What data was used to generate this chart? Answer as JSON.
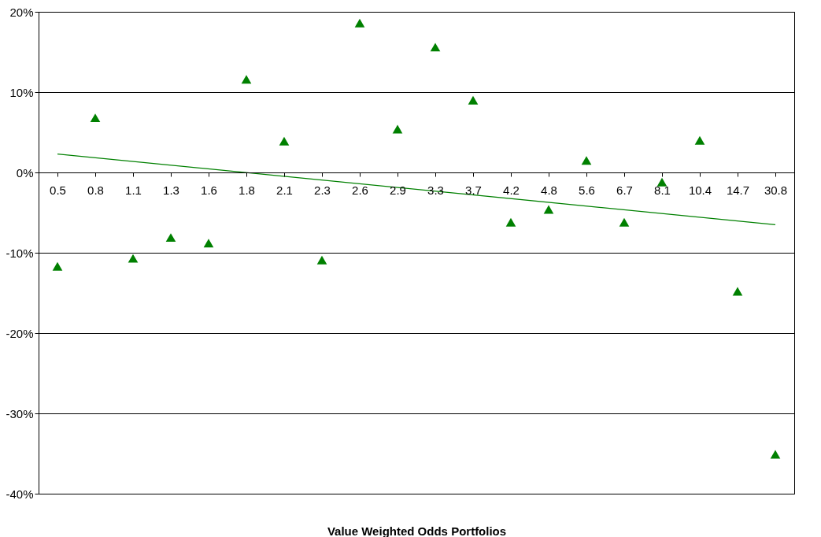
{
  "chart_data": {
    "type": "scatter",
    "xlabel": "Value Weighted Odds Portfolios",
    "categories": [
      "0.5",
      "0.8",
      "1.1",
      "1.3",
      "1.6",
      "1.8",
      "2.1",
      "2.3",
      "2.6",
      "2.9",
      "3.3",
      "3.7",
      "4.2",
      "4.8",
      "5.6",
      "6.7",
      "8.1",
      "10.4",
      "14.7",
      "30.8"
    ],
    "series": [
      {
        "color": "#008000",
        "marker": "triangle",
        "values": [
          -11.7,
          6.8,
          -10.7,
          -8.1,
          -8.8,
          11.6,
          3.9,
          -10.9,
          18.6,
          5.4,
          15.6,
          9.0,
          -6.2,
          -4.6,
          1.5,
          -6.2,
          -1.2,
          4.0,
          -14.8,
          -35.1
        ]
      },
      {
        "type": "line",
        "color": "#008000",
        "marker": "none",
        "x": [
          "0.5",
          "30.8"
        ],
        "values": [
          2.3,
          -6.5
        ]
      }
    ],
    "ylim": [
      -40,
      20
    ],
    "yticks": [
      {
        "value": -40,
        "label": "-40%"
      },
      {
        "value": -30,
        "label": "-30%"
      },
      {
        "value": -20,
        "label": "-20%"
      },
      {
        "value": -10,
        "label": "-10%"
      },
      {
        "value": 0,
        "label": "0%"
      },
      {
        "value": 10,
        "label": "10%"
      },
      {
        "value": 20,
        "label": "20%"
      }
    ],
    "grid": "y"
  }
}
